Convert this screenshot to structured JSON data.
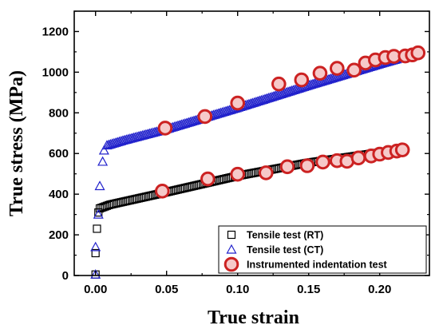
{
  "chart_data": {
    "type": "scatter",
    "xlabel": "True strain",
    "ylabel": "True stress (MPa)",
    "xlim": [
      -0.015,
      0.235
    ],
    "ylim": [
      0,
      1300
    ],
    "xticks": [
      0.0,
      0.05,
      0.1,
      0.15,
      0.2
    ],
    "xtick_labels": [
      "0.00",
      "0.05",
      "0.10",
      "0.15",
      "0.20"
    ],
    "yticks": [
      0,
      200,
      400,
      600,
      800,
      1000,
      1200
    ],
    "ytick_labels": [
      "0",
      "200",
      "400",
      "600",
      "800",
      "1000",
      "1200"
    ],
    "grid": false,
    "legend_position": "bottom-right",
    "series": [
      {
        "name": "Tensile test (RT)",
        "marker": "square",
        "color": "#000000",
        "elastic_points": [
          [
            0.0,
            5
          ],
          [
            0.0,
            110
          ],
          [
            0.001,
            230
          ],
          [
            0.002,
            310
          ]
        ],
        "curve_start": 0.003,
        "curve_end": 0.215,
        "curve_step": 0.00125,
        "curve_anchors": [
          [
            0.003,
            330
          ],
          [
            0.01,
            348
          ],
          [
            0.05,
            410
          ],
          [
            0.1,
            490
          ],
          [
            0.15,
            555
          ],
          [
            0.2,
            605
          ],
          [
            0.215,
            615
          ]
        ]
      },
      {
        "name": "Tensile test (CT)",
        "marker": "triangle",
        "color": "#2222cc",
        "elastic_points": [
          [
            0.0,
            5
          ],
          [
            0.0,
            140
          ],
          [
            0.002,
            300
          ],
          [
            0.003,
            440
          ],
          [
            0.005,
            560
          ],
          [
            0.006,
            615
          ]
        ],
        "curve_start": 0.008,
        "curve_end": 0.225,
        "curve_step": 0.00125,
        "curve_anchors": [
          [
            0.008,
            640
          ],
          [
            0.02,
            665
          ],
          [
            0.05,
            720
          ],
          [
            0.1,
            825
          ],
          [
            0.15,
            935
          ],
          [
            0.2,
            1040
          ],
          [
            0.225,
            1090
          ]
        ]
      },
      {
        "name": "Instrumented indentation test",
        "marker": "circle",
        "color": "#cc2222",
        "points_upper": [
          [
            0.049,
            725
          ],
          [
            0.077,
            782
          ],
          [
            0.1,
            848
          ],
          [
            0.129,
            942
          ],
          [
            0.145,
            962
          ],
          [
            0.158,
            995
          ],
          [
            0.17,
            1019
          ],
          [
            0.182,
            1010
          ],
          [
            0.19,
            1045
          ],
          [
            0.197,
            1060
          ],
          [
            0.204,
            1072
          ],
          [
            0.21,
            1078
          ],
          [
            0.218,
            1080
          ],
          [
            0.223,
            1085
          ],
          [
            0.227,
            1095
          ]
        ],
        "points_lower": [
          [
            0.047,
            415
          ],
          [
            0.079,
            475
          ],
          [
            0.1,
            498
          ],
          [
            0.12,
            505
          ],
          [
            0.135,
            535
          ],
          [
            0.149,
            540
          ],
          [
            0.16,
            558
          ],
          [
            0.17,
            565
          ],
          [
            0.177,
            562
          ],
          [
            0.185,
            578
          ],
          [
            0.194,
            588
          ],
          [
            0.2,
            597
          ],
          [
            0.206,
            605
          ],
          [
            0.212,
            612
          ],
          [
            0.216,
            618
          ]
        ]
      }
    ]
  }
}
